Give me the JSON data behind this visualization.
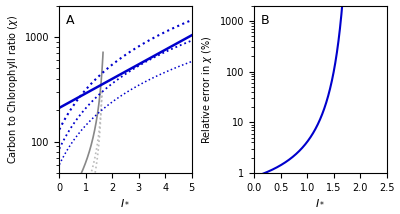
{
  "panel_A": {
    "label": "A",
    "xlabel": "$I_*$",
    "ylabel": "Carbon to Chlorophyll ratio ($\\chi$)",
    "xlim": [
      0,
      5
    ],
    "ylim_log": [
      50,
      2000
    ],
    "xticks": [
      0,
      1,
      2,
      3,
      4,
      5
    ]
  },
  "panel_B": {
    "label": "B",
    "xlabel": "$I_*$",
    "ylabel": "Relative error in $\\chi$ (%)",
    "xlim": [
      0.0,
      2.5
    ],
    "ylim_log": [
      1,
      2000
    ],
    "xticks": [
      0.0,
      0.5,
      1.0,
      1.5,
      2.0,
      2.5
    ]
  },
  "blue_color": "#0000cc",
  "gray_color": "#888888",
  "gray_dotted_color": "#bbbbbb"
}
